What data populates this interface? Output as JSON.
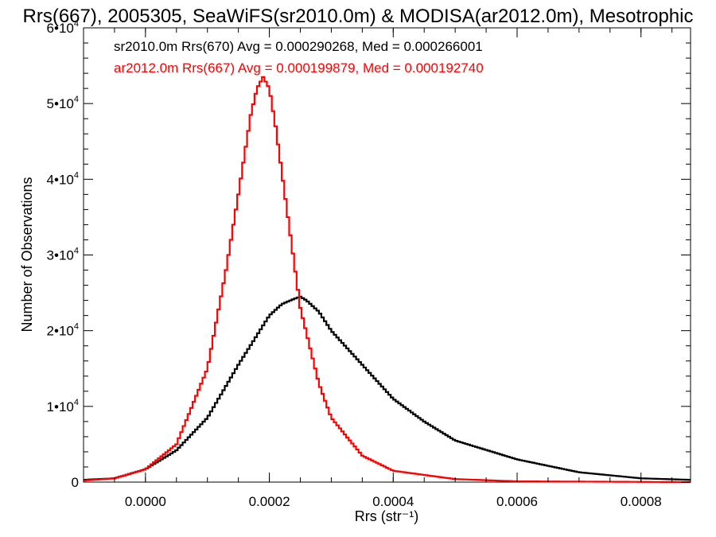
{
  "chart_data": {
    "type": "histogram",
    "title": "Rrs(667), 2005305, SeaWiFS(sr2010.0m) & MODISA(ar2012.0m), Mesotrophic",
    "xlabel": "Rrs (str⁻¹)",
    "ylabel": "Number of Observations",
    "xlim": [
      -0.0001,
      0.00088
    ],
    "ylim": [
      0,
      60000
    ],
    "x_ticks": [
      0.0,
      0.0002,
      0.0004,
      0.0006,
      0.0008
    ],
    "x_tick_labels": [
      "0.0000",
      "0.0002",
      "0.0004",
      "0.0006",
      "0.0008"
    ],
    "y_ticks": [
      0,
      10000,
      20000,
      30000,
      40000,
      50000,
      60000
    ],
    "y_tick_labels": [
      {
        "mantissa": "0",
        "exp": ""
      },
      {
        "mantissa": "1•10",
        "exp": "4"
      },
      {
        "mantissa": "2•10",
        "exp": "4"
      },
      {
        "mantissa": "3•10",
        "exp": "4"
      },
      {
        "mantissa": "4•10",
        "exp": "4"
      },
      {
        "mantissa": "5•10",
        "exp": "4"
      },
      {
        "mantissa": "6•10",
        "exp": "4"
      }
    ],
    "grid": false,
    "series": [
      {
        "name": "sr2010.0m Rrs(670)",
        "color": "#000000",
        "annotation": "sr2010.0m Rrs(670) Avg = 0.000290268, Med = 0.000266001",
        "x": [
          -0.0001,
          -5e-05,
          0.0,
          5e-05,
          0.0001,
          0.00015,
          0.0002,
          0.00022,
          0.00024,
          0.00025,
          0.00026,
          0.00028,
          0.0003,
          0.00035,
          0.0004,
          0.00045,
          0.0005,
          0.0006,
          0.0007,
          0.0008,
          0.00088
        ],
        "values": [
          300,
          500,
          1700,
          4200,
          8500,
          15500,
          22000,
          23500,
          24200,
          24500,
          24000,
          22500,
          20000,
          15500,
          11000,
          8000,
          5500,
          3000,
          1300,
          500,
          300
        ]
      },
      {
        "name": "ar2012.0m Rrs(667)",
        "color": "#ff0000",
        "annotation": "ar2012.0m Rrs(667) Avg = 0.000199879, Med = 0.000192740",
        "x": [
          -0.0001,
          -5e-05,
          0.0,
          5e-05,
          0.0001,
          0.00013,
          0.00015,
          0.00017,
          0.00018,
          0.00019,
          0.0002,
          0.00021,
          0.00022,
          0.00025,
          0.00028,
          0.0003,
          0.00035,
          0.0004,
          0.0005,
          0.0006,
          0.00088
        ],
        "values": [
          200,
          500,
          1700,
          5000,
          15000,
          28000,
          38000,
          48500,
          52000,
          53500,
          52000,
          47000,
          41000,
          23000,
          13000,
          8500,
          3500,
          1500,
          400,
          100,
          0
        ]
      }
    ]
  }
}
